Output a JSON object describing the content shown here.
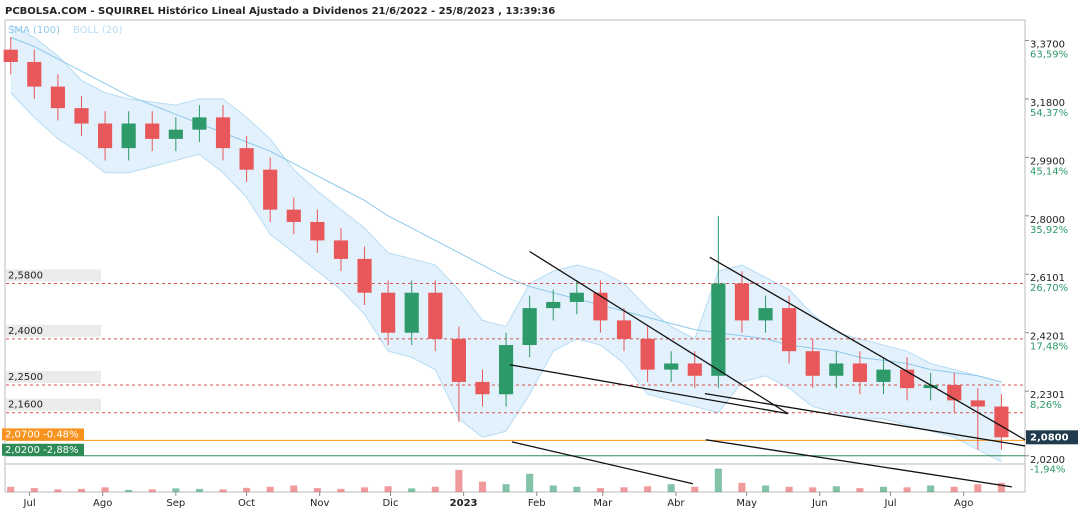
{
  "chart_data": {
    "type": "candlestick",
    "title": "PCBOLSA.COM - SQUIRREL Histórico Lineal Ajustado a Dividenos 21/6/2022 - 25/8/2023 , 13:39:36",
    "up_color": "#2e9a6a",
    "down_color": "#e8575a",
    "xlim": [
      0,
      432
    ],
    "xticks": [
      {
        "value": 10,
        "label": "Jul"
      },
      {
        "value": 41,
        "label": "Ago"
      },
      {
        "value": 72,
        "label": "Sep"
      },
      {
        "value": 102,
        "label": "Oct"
      },
      {
        "value": 133,
        "label": "Nov"
      },
      {
        "value": 163,
        "label": "Dic"
      },
      {
        "value": 194,
        "label": "2023"
      },
      {
        "value": 225,
        "label": "Feb"
      },
      {
        "value": 253,
        "label": "Mar"
      },
      {
        "value": 284,
        "label": "Abr"
      },
      {
        "value": 314,
        "label": "May"
      },
      {
        "value": 345,
        "label": "Jun"
      },
      {
        "value": 375,
        "label": "Jul"
      },
      {
        "value": 406,
        "label": "Ago"
      }
    ],
    "ylim": [
      1.99,
      3.43
    ],
    "yticks": [
      {
        "value": 3.37,
        "label": "3,3700"
      },
      {
        "value": 3.18,
        "label": "3,1800"
      },
      {
        "value": 2.99,
        "label": "2,9900"
      },
      {
        "value": 2.8,
        "label": "2,8000"
      },
      {
        "value": 2.6101,
        "label": "2,6101"
      },
      {
        "value": 2.4201,
        "label": "2,4201"
      },
      {
        "value": 2.2301,
        "label": "2,2301"
      },
      {
        "value": 2.02,
        "label": "2,0200"
      }
    ],
    "y2lim": [
      -3.4,
      66.5
    ],
    "y2ticks": [
      {
        "value": 63.59,
        "label": "63,59%"
      },
      {
        "value": 54.37,
        "label": "54,37%"
      },
      {
        "value": 45.14,
        "label": "45,14%"
      },
      {
        "value": 35.92,
        "label": "35,92%"
      },
      {
        "value": 26.7,
        "label": "26,70%"
      },
      {
        "value": 17.48,
        "label": "17,48%"
      },
      {
        "value": 8.26,
        "label": "8,26%"
      },
      {
        "value": -1.94,
        "label": "-1,94%"
      }
    ],
    "last_price": {
      "value": 2.08,
      "label": "2,0800"
    },
    "levels": [
      {
        "value": 2.58,
        "label": "2,5800"
      },
      {
        "value": 2.4,
        "label": "2,4000"
      },
      {
        "value": 2.25,
        "label": "2,2500"
      },
      {
        "value": 2.16,
        "label": "2,1600"
      }
    ],
    "markers": [
      {
        "value": 2.07,
        "label": "2,0700 -0.48%",
        "color": "#f7931e"
      },
      {
        "value": 2.02,
        "label": "2,0200 -2,88%",
        "color": "#2e8b57"
      }
    ],
    "x": [
      2,
      12,
      22,
      32,
      42,
      52,
      62,
      72,
      82,
      92,
      102,
      112,
      122,
      132,
      142,
      152,
      162,
      172,
      182,
      192,
      202,
      212,
      222,
      232,
      242,
      252,
      262,
      272,
      282,
      292,
      302,
      312,
      322,
      332,
      342,
      352,
      362,
      372,
      382,
      392,
      402,
      412,
      422
    ],
    "open": [
      3.34,
      3.3,
      3.22,
      3.15,
      3.1,
      3.02,
      3.1,
      3.05,
      3.08,
      3.12,
      3.02,
      2.95,
      2.82,
      2.78,
      2.72,
      2.66,
      2.55,
      2.42,
      2.55,
      2.4,
      2.26,
      2.22,
      2.38,
      2.5,
      2.52,
      2.55,
      2.46,
      2.4,
      2.3,
      2.32,
      2.28,
      2.58,
      2.46,
      2.5,
      2.36,
      2.28,
      2.32,
      2.26,
      2.3,
      2.24,
      2.25,
      2.2,
      2.18
    ],
    "high": [
      3.38,
      3.34,
      3.26,
      3.19,
      3.14,
      3.14,
      3.14,
      3.12,
      3.16,
      3.16,
      3.06,
      2.99,
      2.86,
      2.82,
      2.76,
      2.7,
      2.59,
      2.59,
      2.59,
      2.44,
      2.3,
      2.42,
      2.54,
      2.56,
      2.59,
      2.59,
      2.5,
      2.44,
      2.36,
      2.36,
      2.8,
      2.62,
      2.54,
      2.54,
      2.4,
      2.36,
      2.36,
      2.34,
      2.34,
      2.29,
      2.29,
      2.24,
      2.22
    ],
    "low": [
      3.26,
      3.18,
      3.11,
      3.06,
      2.98,
      2.98,
      3.01,
      3.01,
      3.04,
      2.98,
      2.91,
      2.78,
      2.74,
      2.68,
      2.62,
      2.51,
      2.38,
      2.38,
      2.36,
      2.13,
      2.18,
      2.18,
      2.34,
      2.46,
      2.48,
      2.42,
      2.36,
      2.26,
      2.26,
      2.24,
      2.24,
      2.42,
      2.42,
      2.32,
      2.24,
      2.24,
      2.22,
      2.22,
      2.2,
      2.2,
      2.16,
      2.04,
      2.04
    ],
    "close": [
      3.3,
      3.22,
      3.15,
      3.1,
      3.02,
      3.1,
      3.05,
      3.08,
      3.12,
      3.02,
      2.95,
      2.82,
      2.78,
      2.72,
      2.66,
      2.55,
      2.42,
      2.55,
      2.4,
      2.26,
      2.22,
      2.38,
      2.5,
      2.52,
      2.55,
      2.46,
      2.4,
      2.3,
      2.32,
      2.28,
      2.58,
      2.46,
      2.5,
      2.36,
      2.28,
      2.32,
      2.26,
      2.3,
      2.24,
      2.25,
      2.2,
      2.18,
      2.08
    ],
    "vlim": [
      0,
      100
    ],
    "volume": [
      20,
      15,
      10,
      12,
      18,
      8,
      10,
      14,
      12,
      10,
      16,
      20,
      25,
      15,
      12,
      18,
      22,
      14,
      20,
      85,
      40,
      30,
      70,
      25,
      20,
      15,
      18,
      22,
      30,
      20,
      90,
      35,
      25,
      20,
      18,
      22,
      15,
      20,
      18,
      25,
      20,
      30,
      35
    ],
    "sma": {
      "name": "SMA (100)",
      "color": "#8ec9ea",
      "values": [
        3.38,
        3.35,
        3.31,
        3.27,
        3.23,
        3.19,
        3.16,
        3.13,
        3.1,
        3.07,
        3.04,
        3.01,
        2.97,
        2.93,
        2.89,
        2.85,
        2.8,
        2.76,
        2.72,
        2.68,
        2.64,
        2.6,
        2.57,
        2.55,
        2.53,
        2.51,
        2.49,
        2.47,
        2.45,
        2.43,
        2.42,
        2.41,
        2.4,
        2.38,
        2.37,
        2.36,
        2.34,
        2.33,
        2.32,
        2.3,
        2.29,
        2.28,
        2.26
      ]
    },
    "boll": {
      "name": "BOLL (20)",
      "color": "#d6ebfa",
      "upper": [
        3.42,
        3.38,
        3.32,
        3.24,
        3.2,
        3.18,
        3.17,
        3.16,
        3.18,
        3.18,
        3.12,
        3.05,
        2.95,
        2.88,
        2.82,
        2.76,
        2.68,
        2.66,
        2.64,
        2.56,
        2.46,
        2.44,
        2.58,
        2.62,
        2.64,
        2.62,
        2.58,
        2.5,
        2.44,
        2.4,
        2.62,
        2.64,
        2.6,
        2.56,
        2.48,
        2.42,
        2.4,
        2.38,
        2.36,
        2.32,
        2.3,
        2.28,
        2.26
      ],
      "lower": [
        3.2,
        3.12,
        3.05,
        3.0,
        2.94,
        2.94,
        2.96,
        2.98,
        3.0,
        2.94,
        2.86,
        2.74,
        2.68,
        2.62,
        2.56,
        2.48,
        2.36,
        2.34,
        2.3,
        2.14,
        2.08,
        2.1,
        2.22,
        2.36,
        2.4,
        2.38,
        2.32,
        2.22,
        2.2,
        2.18,
        2.16,
        2.26,
        2.28,
        2.24,
        2.18,
        2.16,
        2.14,
        2.14,
        2.12,
        2.1,
        2.08,
        2.04,
        2.0
      ]
    },
    "trendlines": [
      {
        "x": [
          222,
          331.5
        ],
        "y": [
          2.684,
          2.157
        ]
      },
      {
        "x": [
          213.6,
          331.5
        ],
        "y": [
          2.316,
          2.157
        ]
      },
      {
        "x": [
          298.4,
          432
        ],
        "y": [
          2.665,
          2.072
        ]
      },
      {
        "x": [
          296.3,
          432
        ],
        "y": [
          2.222,
          2.052
        ]
      },
      {
        "x": [
          214.5,
          291.2
        ],
        "y": [
          2.065,
          1.929
        ]
      },
      {
        "x": [
          296.7,
          426.4
        ],
        "y": [
          2.072,
          1.919
        ]
      }
    ]
  }
}
